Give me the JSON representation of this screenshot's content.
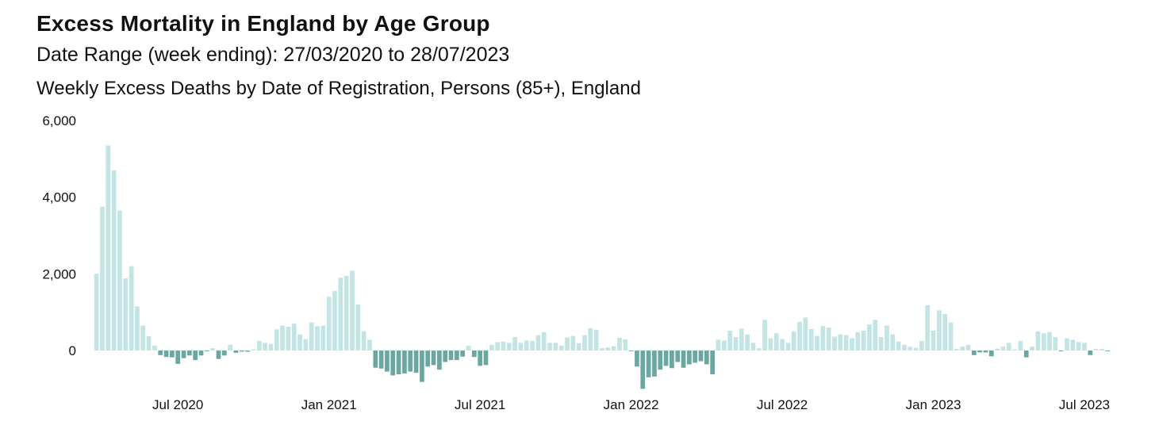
{
  "header": {
    "title": "Excess Mortality in England by Age Group",
    "subtitle": "Date Range (week ending): 27/03/2020 to 28/07/2023",
    "chart_title": "Weekly Excess Deaths by Date of Registration, Persons (85+), England"
  },
  "colors": {
    "positive": "#c3e4e4",
    "negative": "#6aa7a1"
  },
  "chart_data": {
    "type": "bar",
    "title": "Weekly Excess Deaths by Date of Registration, Persons (85+), England",
    "xlabel": "",
    "ylabel": "",
    "ylim": [
      -1000,
      6000
    ],
    "yticks": [
      0,
      2000,
      4000,
      6000
    ],
    "ytick_labels": [
      "0",
      "2,000",
      "4,000",
      "6,000"
    ],
    "xtick_labels": [
      {
        "label": "Jul 2020",
        "week_index": 14
      },
      {
        "label": "Jan 2021",
        "week_index": 40
      },
      {
        "label": "Jul 2021",
        "week_index": 66
      },
      {
        "label": "Jan 2022",
        "week_index": 92
      },
      {
        "label": "Jul 2022",
        "week_index": 118
      },
      {
        "label": "Jan 2023",
        "week_index": 144
      },
      {
        "label": "Jul 2023",
        "week_index": 170
      }
    ],
    "grid": false,
    "legend": "none",
    "x_start": "27/03/2020",
    "x_end": "28/07/2023",
    "x_step": "1 week",
    "values": [
      2000,
      3750,
      5350,
      4700,
      3650,
      1880,
      2200,
      1150,
      650,
      370,
      130,
      -120,
      -170,
      -180,
      -350,
      -200,
      -130,
      -250,
      -130,
      -20,
      60,
      -220,
      -130,
      150,
      -60,
      -30,
      -30,
      30,
      250,
      200,
      170,
      550,
      650,
      620,
      700,
      420,
      300,
      730,
      630,
      650,
      1400,
      1550,
      1900,
      1950,
      2080,
      1200,
      500,
      280,
      -450,
      -470,
      -550,
      -650,
      -620,
      -600,
      -550,
      -580,
      -820,
      -420,
      -380,
      -500,
      -300,
      -250,
      -250,
      -160,
      120,
      -170,
      -400,
      -380,
      150,
      220,
      230,
      200,
      350,
      200,
      260,
      250,
      400,
      480,
      200,
      200,
      130,
      340,
      380,
      190,
      400,
      580,
      540,
      60,
      80,
      110,
      330,
      290,
      -20,
      -420,
      -1000,
      -700,
      -680,
      -500,
      -400,
      -460,
      -300,
      -450,
      -360,
      -320,
      -280,
      -360,
      -620,
      280,
      260,
      520,
      350,
      570,
      420,
      200,
      60,
      800,
      320,
      450,
      300,
      200,
      500,
      750,
      860,
      560,
      380,
      640,
      600,
      360,
      420,
      400,
      320,
      480,
      520,
      680,
      800,
      350,
      650,
      420,
      230,
      150,
      100,
      70,
      250,
      1180,
      520,
      1050,
      950,
      730,
      40,
      100,
      150,
      -120,
      -50,
      -50,
      -150,
      50,
      100,
      200,
      30,
      250,
      -180,
      100,
      500,
      450,
      480,
      350,
      -20,
      320,
      280,
      220,
      200,
      -120,
      40,
      40,
      -20
    ]
  }
}
